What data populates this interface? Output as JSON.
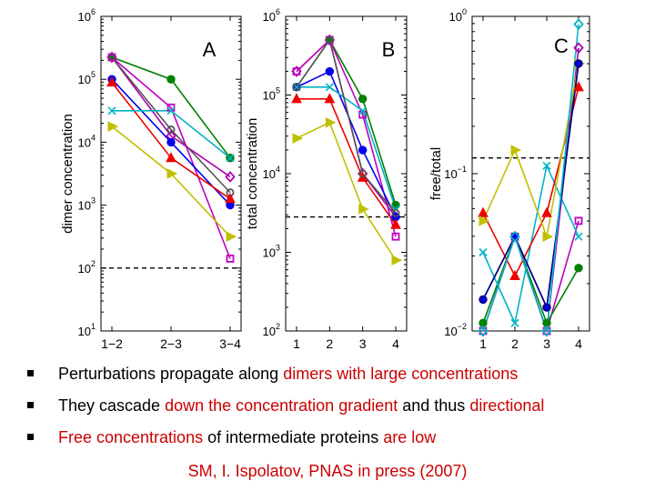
{
  "colors": {
    "green": "#008000",
    "blue": "#0000ee",
    "purple": "#b000b0",
    "magenta": "#c000c0",
    "cyan": "#00b4c8",
    "gray": "#555555",
    "red": "#ee0000",
    "olive": "#c0c000",
    "navy": "#000080",
    "accent_text": "#cc0000"
  },
  "chart_data": [
    {
      "type": "line",
      "panel_label": "A",
      "log_y": true,
      "ylabel": "dimer concentration",
      "x": [
        1,
        2,
        3
      ],
      "xticks": [
        "1−2",
        "2−3",
        "3−4"
      ],
      "xlim": [
        1,
        3
      ],
      "ylim_exp": [
        1,
        6
      ],
      "ytick_exponents": [
        1,
        2,
        3,
        4,
        5,
        6
      ],
      "dashed_line_log": 2.0,
      "series": [
        {
          "name": "green",
          "color": "#008000",
          "marker": "dot",
          "values_log": [
            5.35,
            5.0,
            3.75
          ]
        },
        {
          "name": "purple",
          "color": "#b000b0",
          "marker": "diamond",
          "values_log": [
            5.35,
            4.1,
            3.45
          ]
        },
        {
          "name": "gray",
          "color": "#555555",
          "marker": "ocircle",
          "values_log": [
            5.35,
            4.2,
            3.2
          ]
        },
        {
          "name": "magenta",
          "color": "#c000c0",
          "marker": "square",
          "values_log": [
            5.35,
            4.55,
            2.15
          ]
        },
        {
          "name": "blue",
          "color": "#0000ee",
          "marker": "dot",
          "values_log": [
            5.0,
            4.0,
            3.0
          ]
        },
        {
          "name": "red",
          "color": "#ee0000",
          "marker": "triangle",
          "values_log": [
            4.95,
            3.75,
            3.1
          ]
        },
        {
          "name": "cyan",
          "color": "#00b4c8",
          "marker": "x",
          "values_log": [
            4.5,
            4.5,
            3.75
          ]
        },
        {
          "name": "olive",
          "color": "#c0c000",
          "marker": "tri-right",
          "values_log": [
            4.25,
            3.5,
            2.5
          ]
        }
      ]
    },
    {
      "type": "line",
      "panel_label": "B",
      "log_y": true,
      "ylabel": "total concentration",
      "x": [
        1,
        2,
        3,
        4
      ],
      "xticks": [
        "1",
        "2",
        "3",
        "4"
      ],
      "xlim": [
        1,
        4
      ],
      "ylim_exp": [
        2,
        6
      ],
      "ytick_exponents": [
        2,
        3,
        4,
        5,
        6
      ],
      "dashed_line_log": 3.45,
      "series": [
        {
          "name": "green",
          "color": "#008000",
          "marker": "dot",
          "values_log": [
            5.1,
            5.7,
            4.95,
            3.6
          ]
        },
        {
          "name": "purple",
          "color": "#b000b0",
          "marker": "diamond",
          "values_log": [
            5.3,
            5.7,
            4.0,
            3.45
          ]
        },
        {
          "name": "magenta",
          "color": "#c000c0",
          "marker": "square",
          "values_log": [
            5.3,
            5.7,
            4.75,
            3.2
          ]
        },
        {
          "name": "blue",
          "color": "#0000ee",
          "marker": "dot",
          "values_log": [
            5.1,
            5.3,
            4.3,
            3.45
          ]
        },
        {
          "name": "cyan",
          "color": "#00b4c8",
          "marker": "x",
          "values_log": [
            5.1,
            5.1,
            4.8,
            3.55
          ]
        },
        {
          "name": "red",
          "color": "#ee0000",
          "marker": "triangle",
          "values_log": [
            4.95,
            4.95,
            3.95,
            3.35
          ]
        },
        {
          "name": "gray",
          "color": "#555555",
          "marker": "ocircle",
          "values_log": [
            5.1,
            5.7,
            4.0,
            3.5
          ]
        },
        {
          "name": "olive",
          "color": "#c0c000",
          "marker": "tri-right",
          "values_log": [
            4.45,
            4.65,
            3.55,
            2.9
          ]
        }
      ]
    },
    {
      "type": "line",
      "panel_label": "C",
      "log_y": true,
      "ylabel": "free/total",
      "x": [
        1,
        2,
        3,
        4
      ],
      "xticks": [
        "1",
        "2",
        "3",
        "4"
      ],
      "xlim": [
        1,
        4
      ],
      "ylim_exp": [
        -2,
        0
      ],
      "ytick_exponents": [
        -2,
        -1,
        0
      ],
      "dashed_line_log": -0.9,
      "series": [
        {
          "name": "purple",
          "color": "#b000b0",
          "marker": "diamond",
          "values_log": [
            -2.0,
            -1.4,
            -2.0,
            -0.2
          ]
        },
        {
          "name": "magenta",
          "color": "#c000c0",
          "marker": "square",
          "values_log": [
            -2.0,
            -1.4,
            -2.0,
            -1.3
          ]
        },
        {
          "name": "green",
          "color": "#008000",
          "marker": "dot",
          "values_log": [
            -1.95,
            -1.4,
            -1.95,
            -1.6
          ]
        },
        {
          "name": "cyan",
          "color": "#00b4c8",
          "marker": "x",
          "values_log": [
            -1.5,
            -1.95,
            -0.95,
            -1.4
          ]
        },
        {
          "name": "red",
          "color": "#ee0000",
          "marker": "triangle",
          "values_log": [
            -1.25,
            -1.65,
            -1.25,
            -0.45
          ]
        },
        {
          "name": "olive",
          "color": "#c0c000",
          "marker": "tri-right",
          "values_log": [
            -1.3,
            -0.85,
            -1.4,
            -0.3
          ]
        },
        {
          "name": "blue",
          "color": "#0000ee",
          "marker": "dot",
          "values_log": [
            -1.8,
            -1.4,
            -1.85,
            -0.3
          ]
        },
        {
          "name": "navy",
          "color": "#000080",
          "marker": "ocircle",
          "values_log": [
            -1.8,
            -1.4,
            -1.85,
            -0.3
          ]
        },
        {
          "name": "cyan-top",
          "color": "#00b4c8",
          "marker": "diamond",
          "values_log": [
            -2.0,
            -1.4,
            -2.0,
            -0.05
          ]
        }
      ]
    }
  ],
  "bullets": [
    {
      "parts": [
        {
          "text": "Perturbations propagate along ",
          "red": false
        },
        {
          "text": "dimers with large concentrations",
          "red": true
        }
      ]
    },
    {
      "parts": [
        {
          "text": "They cascade ",
          "red": false
        },
        {
          "text": "down the concentration gradient",
          "red": true
        },
        {
          "text": " and thus ",
          "red": false
        },
        {
          "text": "directional",
          "red": true
        }
      ]
    },
    {
      "parts": [
        {
          "text": "Free concentrations",
          "red": true
        },
        {
          "text": " of intermediate proteins ",
          "red": false
        },
        {
          "text": "are low",
          "red": true
        }
      ]
    }
  ],
  "citation": "SM, I. Ispolatov, PNAS in press (2007)"
}
